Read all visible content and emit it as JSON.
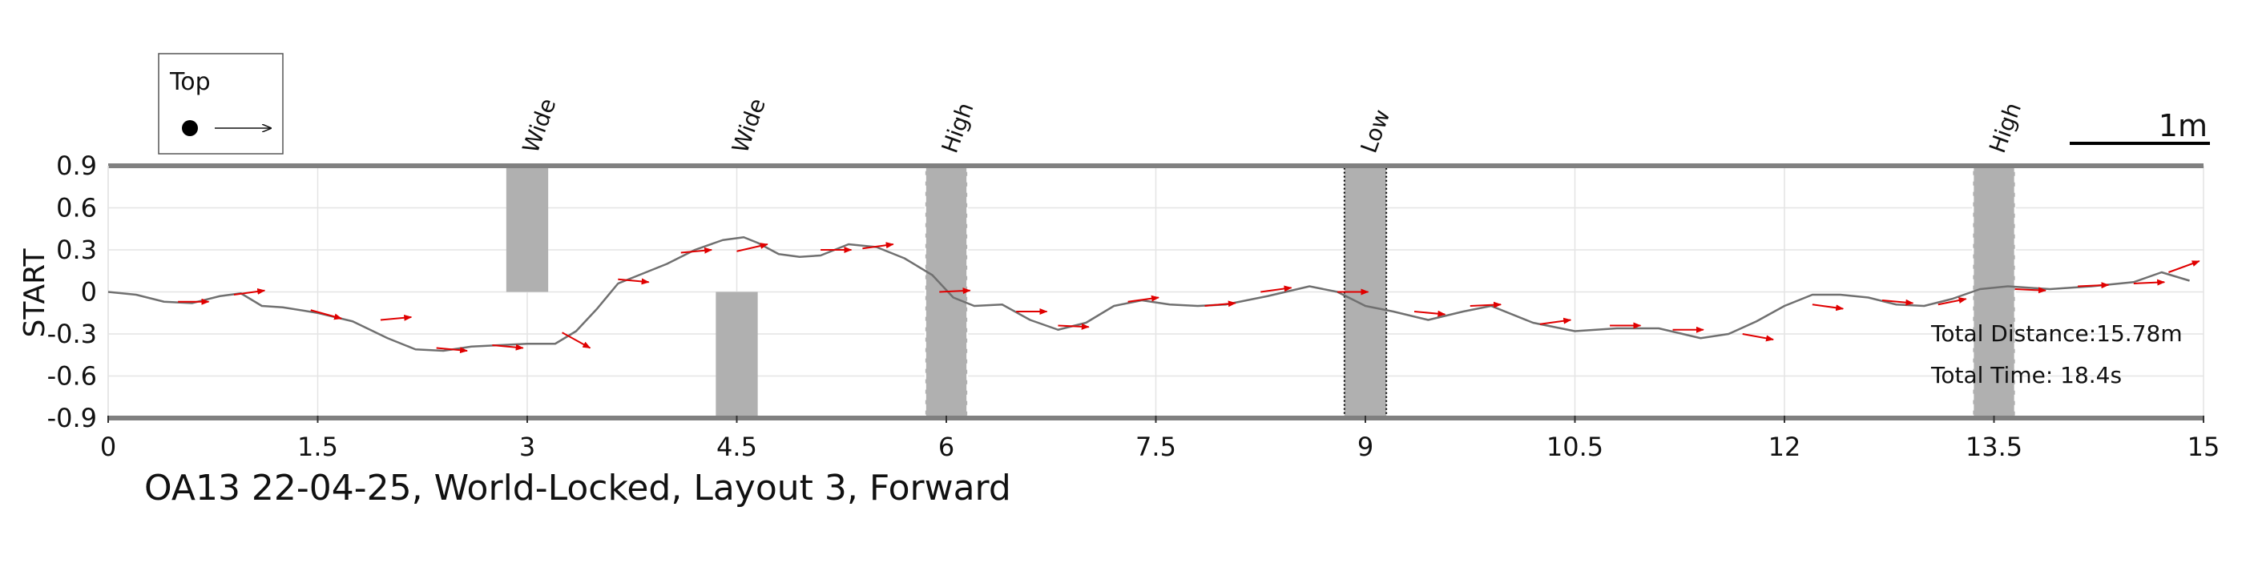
{
  "chart_data": {
    "type": "line",
    "ylabel": "START",
    "xlim": [
      0,
      15
    ],
    "ylim": [
      -0.9,
      0.9
    ],
    "x_ticks": [
      "0",
      "1.5",
      "3",
      "4.5",
      "6",
      "7.5",
      "9",
      "10.5",
      "12",
      "13.5",
      "15"
    ],
    "y_ticks": [
      "0.9",
      "0.6",
      "0.3",
      "0",
      "-0.3",
      "-0.6",
      "-0.9"
    ],
    "grid": true,
    "caption": "OA13 22-04-25, World-Locked, Layout 3, Forward",
    "legend": {
      "label": "Top",
      "position": "top-left"
    },
    "scale_bar": {
      "label": "1m",
      "length_m": 1
    },
    "stats": {
      "distance": "Total Distance:15.78m",
      "time": "Total Time: 18.4s"
    },
    "colors": {
      "path": "#707070",
      "arrows": "#e00000",
      "obstacles": "#b0b0b0",
      "frame": "#808080"
    },
    "obstacles": [
      {
        "label": "Wide",
        "x": [
          2.85,
          3.15
        ],
        "y": [
          0,
          0.9
        ],
        "style": "plain"
      },
      {
        "label": "Wide",
        "x": [
          4.35,
          4.65
        ],
        "y": [
          -0.9,
          0
        ],
        "style": "plain"
      },
      {
        "label": "High",
        "x": [
          5.85,
          6.15
        ],
        "y": [
          -0.9,
          0.9
        ],
        "style": "dashed"
      },
      {
        "label": "Low",
        "x": [
          8.85,
          9.15
        ],
        "y": [
          -0.9,
          0.9
        ],
        "style": "dotted"
      },
      {
        "label": "High",
        "x": [
          13.35,
          13.65
        ],
        "y": [
          -0.9,
          0.9
        ],
        "style": "dashed"
      }
    ],
    "path": {
      "x": [
        0.0,
        0.2,
        0.4,
        0.6,
        0.8,
        0.95,
        1.1,
        1.25,
        1.5,
        1.75,
        2.0,
        2.2,
        2.4,
        2.6,
        2.8,
        3.0,
        3.2,
        3.35,
        3.5,
        3.65,
        3.8,
        4.0,
        4.2,
        4.4,
        4.55,
        4.65,
        4.8,
        4.95,
        5.1,
        5.3,
        5.5,
        5.7,
        5.9,
        6.05,
        6.2,
        6.4,
        6.6,
        6.8,
        7.0,
        7.2,
        7.4,
        7.6,
        7.8,
        8.0,
        8.3,
        8.6,
        8.8,
        9.0,
        9.2,
        9.45,
        9.7,
        9.9,
        10.2,
        10.5,
        10.8,
        11.1,
        11.4,
        11.6,
        11.8,
        12.0,
        12.2,
        12.4,
        12.6,
        12.8,
        13.0,
        13.2,
        13.4,
        13.6,
        13.9,
        14.2,
        14.5,
        14.7,
        14.9
      ],
      "y": [
        0.0,
        -0.02,
        -0.07,
        -0.08,
        -0.03,
        -0.01,
        -0.1,
        -0.11,
        -0.15,
        -0.21,
        -0.33,
        -0.41,
        -0.42,
        -0.39,
        -0.38,
        -0.37,
        -0.37,
        -0.28,
        -0.12,
        0.06,
        0.12,
        0.2,
        0.3,
        0.37,
        0.39,
        0.35,
        0.27,
        0.25,
        0.26,
        0.34,
        0.32,
        0.24,
        0.12,
        -0.04,
        -0.1,
        -0.09,
        -0.2,
        -0.27,
        -0.22,
        -0.1,
        -0.06,
        -0.09,
        -0.1,
        -0.09,
        -0.03,
        0.04,
        0.0,
        -0.1,
        -0.14,
        -0.2,
        -0.14,
        -0.1,
        -0.22,
        -0.28,
        -0.26,
        -0.26,
        -0.33,
        -0.3,
        -0.21,
        -0.1,
        -0.02,
        -0.02,
        -0.04,
        -0.09,
        -0.1,
        -0.05,
        0.02,
        0.04,
        0.02,
        0.04,
        0.07,
        0.14,
        0.08
      ]
    },
    "arrows": [
      {
        "x": 0.5,
        "y": -0.07,
        "dx": 0.22,
        "dy": 0.0
      },
      {
        "x": 0.9,
        "y": -0.02,
        "dx": 0.22,
        "dy": 0.03
      },
      {
        "x": 1.45,
        "y": -0.13,
        "dx": 0.22,
        "dy": -0.06
      },
      {
        "x": 1.95,
        "y": -0.2,
        "dx": 0.22,
        "dy": 0.02
      },
      {
        "x": 2.35,
        "y": -0.4,
        "dx": 0.22,
        "dy": -0.02
      },
      {
        "x": 2.75,
        "y": -0.38,
        "dx": 0.22,
        "dy": -0.02
      },
      {
        "x": 3.25,
        "y": -0.29,
        "dx": 0.2,
        "dy": -0.11
      },
      {
        "x": 3.65,
        "y": 0.09,
        "dx": 0.22,
        "dy": -0.02
      },
      {
        "x": 4.1,
        "y": 0.28,
        "dx": 0.22,
        "dy": 0.02
      },
      {
        "x": 4.5,
        "y": 0.29,
        "dx": 0.22,
        "dy": 0.05
      },
      {
        "x": 5.1,
        "y": 0.3,
        "dx": 0.22,
        "dy": 0.0
      },
      {
        "x": 5.4,
        "y": 0.31,
        "dx": 0.22,
        "dy": 0.03
      },
      {
        "x": 5.95,
        "y": 0.0,
        "dx": 0.22,
        "dy": 0.01
      },
      {
        "x": 6.5,
        "y": -0.14,
        "dx": 0.22,
        "dy": 0.0
      },
      {
        "x": 6.8,
        "y": -0.24,
        "dx": 0.22,
        "dy": -0.01
      },
      {
        "x": 7.3,
        "y": -0.07,
        "dx": 0.22,
        "dy": 0.03
      },
      {
        "x": 7.85,
        "y": -0.1,
        "dx": 0.22,
        "dy": 0.02
      },
      {
        "x": 8.25,
        "y": 0.0,
        "dx": 0.22,
        "dy": 0.03
      },
      {
        "x": 8.8,
        "y": 0.0,
        "dx": 0.22,
        "dy": 0.0
      },
      {
        "x": 9.35,
        "y": -0.14,
        "dx": 0.22,
        "dy": -0.02
      },
      {
        "x": 9.75,
        "y": -0.1,
        "dx": 0.22,
        "dy": 0.01
      },
      {
        "x": 10.25,
        "y": -0.23,
        "dx": 0.22,
        "dy": 0.03
      },
      {
        "x": 10.75,
        "y": -0.24,
        "dx": 0.22,
        "dy": 0.0
      },
      {
        "x": 11.2,
        "y": -0.27,
        "dx": 0.22,
        "dy": 0.0
      },
      {
        "x": 11.7,
        "y": -0.3,
        "dx": 0.22,
        "dy": -0.04
      },
      {
        "x": 12.2,
        "y": -0.09,
        "dx": 0.22,
        "dy": -0.03
      },
      {
        "x": 12.7,
        "y": -0.06,
        "dx": 0.22,
        "dy": -0.02
      },
      {
        "x": 13.1,
        "y": -0.09,
        "dx": 0.2,
        "dy": 0.04
      },
      {
        "x": 13.65,
        "y": 0.02,
        "dx": 0.22,
        "dy": -0.01
      },
      {
        "x": 14.1,
        "y": 0.04,
        "dx": 0.22,
        "dy": 0.01
      },
      {
        "x": 14.5,
        "y": 0.06,
        "dx": 0.22,
        "dy": 0.01
      },
      {
        "x": 14.75,
        "y": 0.14,
        "dx": 0.22,
        "dy": 0.08
      }
    ]
  }
}
